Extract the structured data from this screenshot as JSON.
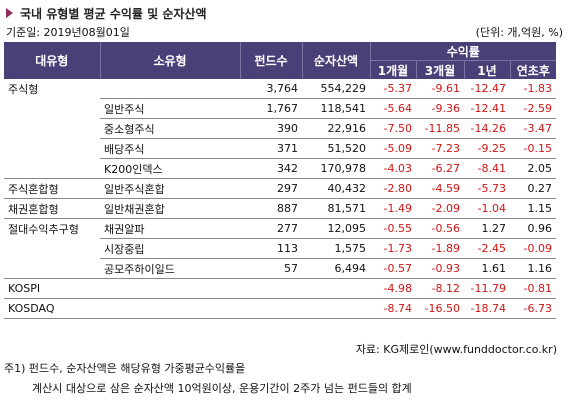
{
  "title": "국내 유형별 평균 수익률 및 순자산액",
  "base_date": "기준일: 2019년08월01일",
  "unit": "(단위: 개,억원, %)",
  "headers": {
    "major": "대유형",
    "minor": "소유형",
    "funds": "펀드수",
    "assets": "순자산액",
    "returns": "수익률",
    "m1": "1개월",
    "m3": "3개월",
    "y1": "1년",
    "ytd": "연초후"
  },
  "rows": [
    {
      "major": "주식형",
      "minor": "",
      "funds": "3,764",
      "assets": "554,229",
      "m1": "-5.37",
      "m3": "-9.61",
      "y1": "-12.47",
      "ytd": "-1.83"
    },
    {
      "major": "",
      "minor": "일반주식",
      "funds": "1,767",
      "assets": "118,541",
      "m1": "-5.64",
      "m3": "-9.36",
      "y1": "-12.41",
      "ytd": "-2.59"
    },
    {
      "major": "",
      "minor": "중소형주식",
      "funds": "390",
      "assets": "22,916",
      "m1": "-7.50",
      "m3": "-11.85",
      "y1": "-14.26",
      "ytd": "-3.47"
    },
    {
      "major": "",
      "minor": "배당주식",
      "funds": "371",
      "assets": "51,520",
      "m1": "-5.09",
      "m3": "-7.23",
      "y1": "-9.25",
      "ytd": "-0.15"
    },
    {
      "major": "",
      "minor": "K200인덱스",
      "funds": "342",
      "assets": "170,978",
      "m1": "-4.03",
      "m3": "-6.27",
      "y1": "-8.41",
      "ytd": "2.05"
    },
    {
      "major": "주식혼합형",
      "minor": "일반주식혼합",
      "funds": "297",
      "assets": "40,432",
      "m1": "-2.80",
      "m3": "-4.59",
      "y1": "-5.73",
      "ytd": "0.27"
    },
    {
      "major": "채권혼합형",
      "minor": "일반채권혼합",
      "funds": "887",
      "assets": "81,571",
      "m1": "-1.49",
      "m3": "-2.09",
      "y1": "-1.04",
      "ytd": "1.15"
    },
    {
      "major": "절대수익추구형",
      "minor": "채권알파",
      "funds": "277",
      "assets": "12,095",
      "m1": "-0.55",
      "m3": "-0.56",
      "y1": "1.27",
      "ytd": "0.96"
    },
    {
      "major": "",
      "minor": "시장중립",
      "funds": "113",
      "assets": "1,575",
      "m1": "-1.73",
      "m3": "-1.89",
      "y1": "-2.45",
      "ytd": "-0.09"
    },
    {
      "major": "",
      "minor": "공모주하이일드",
      "funds": "57",
      "assets": "6,494",
      "m1": "-0.57",
      "m3": "-0.93",
      "y1": "1.61",
      "ytd": "1.16"
    },
    {
      "major": "KOSPI",
      "minor": "",
      "funds": "",
      "assets": "",
      "m1": "-4.98",
      "m3": "-8.12",
      "y1": "-11.79",
      "ytd": "-0.81"
    },
    {
      "major": "KOSDAQ",
      "minor": "",
      "funds": "",
      "assets": "",
      "m1": "-8.74",
      "m3": "-16.50",
      "y1": "-18.74",
      "ytd": "-6.73"
    }
  ],
  "source": "자료: KG제로인(www.funddoctor.co.kr)",
  "note_line1": "주1) 펀드수, 순자산액은 해당유형 가중평균수익률을",
  "note_line2": "계산시 대상으로 삼은 순자산액 10억원이상, 운용기간이 2주가 넘는 펀드들의 합계",
  "colors": {
    "header_bg": "#4b3f78",
    "negative": "#d21414",
    "bullet": "#8a2b62"
  }
}
